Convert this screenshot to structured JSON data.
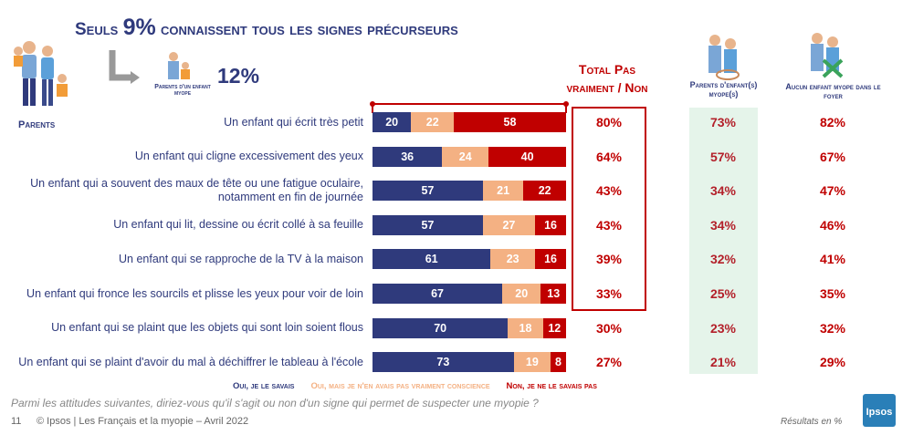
{
  "chart_data": {
    "type": "stacked-bar",
    "title": [
      "Seuls",
      "9%",
      "connaissent tous les signes précurseurs"
    ],
    "group_label": "Parents",
    "callout_label": "Parents d'un enfant myope",
    "callout_value": "12%",
    "categories": [
      "Un enfant qui écrit très petit",
      "Un enfant qui cligne excessivement des yeux",
      "Un enfant qui a souvent des maux de tête ou une fatigue oculaire, notamment en fin de journée",
      "Un enfant qui lit, dessine ou écrit collé à sa feuille",
      "Un enfant qui se rapproche de la TV à la maison",
      "Un enfant qui fronce les sourcils et plisse les yeux pour voir de loin",
      "Un enfant qui se plaint que les objets qui sont loin soient flous",
      "Un enfant qui se plaint d'avoir du mal à déchiffrer le tableau à l'école"
    ],
    "series": [
      {
        "name": "Oui, je le savais",
        "color": "#2f3a7c",
        "values": [
          20,
          36,
          57,
          57,
          61,
          67,
          70,
          73
        ]
      },
      {
        "name": "Oui, mais je n'en avais pas vraiment conscience",
        "color": "#f4b183",
        "values": [
          22,
          24,
          21,
          27,
          23,
          20,
          18,
          19
        ]
      },
      {
        "name": "Non, je ne le savais pas",
        "color": "#c00000",
        "values": [
          58,
          40,
          22,
          16,
          16,
          13,
          12,
          8
        ]
      }
    ],
    "xlim": [
      0,
      100
    ],
    "total_column": {
      "title": "Total Pas vraiment / Non",
      "values": [
        80,
        64,
        43,
        43,
        39,
        33,
        30,
        27
      ],
      "value_labels": [
        "80%",
        "64%",
        "43%",
        "43%",
        "39%",
        "33%",
        "30%",
        "27%"
      ]
    },
    "subgroups": [
      {
        "title": "Parents d'enfant(s) myope(s)",
        "values": [
          73,
          57,
          34,
          34,
          32,
          25,
          23,
          21
        ],
        "value_labels": [
          "73%",
          "57%",
          "34%",
          "34%",
          "32%",
          "25%",
          "23%",
          "21%"
        ]
      },
      {
        "title": "Aucun enfant myope dans le foyer",
        "values": [
          82,
          67,
          47,
          46,
          41,
          35,
          32,
          29
        ],
        "value_labels": [
          "82%",
          "67%",
          "47%",
          "46%",
          "41%",
          "35%",
          "32%",
          "29%"
        ]
      }
    ],
    "question": "Parmi les attitudes suivantes, diriez-vous qu'il s'agit ou non d'un signe qui permet de suspecter une myopie ?",
    "page_number": "11",
    "source": "© Ipsos | Les Français et la myopie – Avril 2022",
    "note": "Résultats en %",
    "logo": "Ipsos"
  }
}
